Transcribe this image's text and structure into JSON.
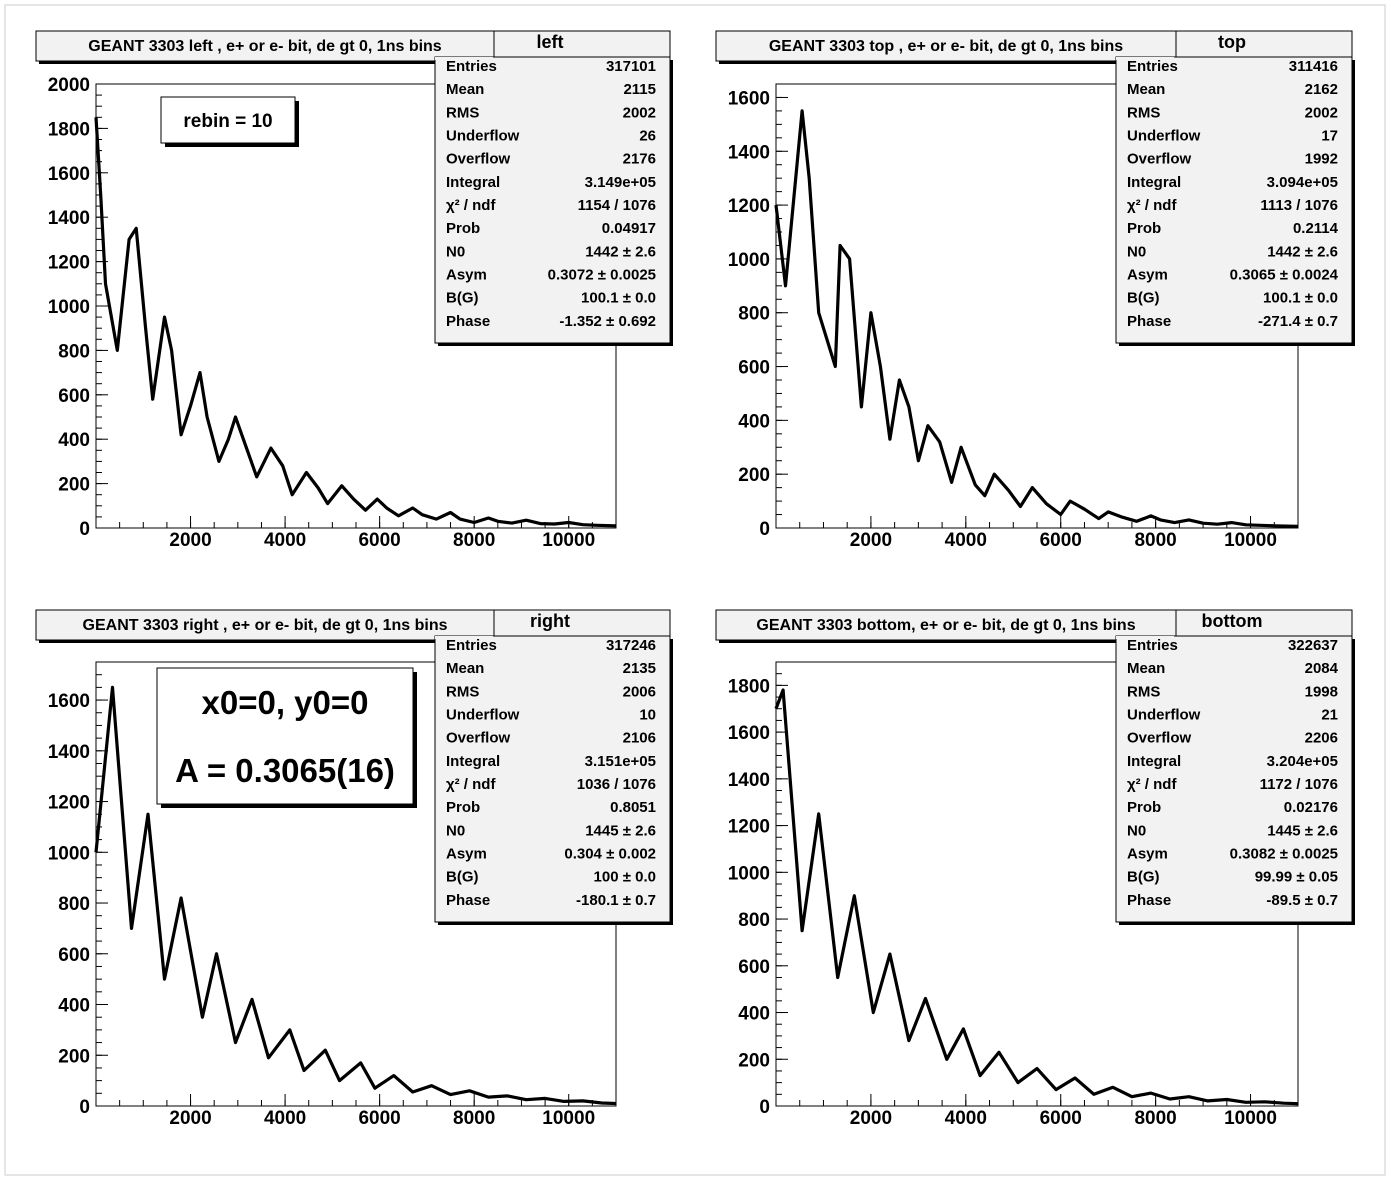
{
  "colors": {
    "line": "#000000",
    "frame": "#000000",
    "stats_bg": "#f2f2f2",
    "page_bg": "#ffffff"
  },
  "chart_data": [
    {
      "type": "line",
      "title": "GEANT 3303 left , e+ or e- bit, de gt 0, 1ns bins",
      "histogram_name": "left",
      "xlim": [
        0,
        11000
      ],
      "ylim": [
        0,
        2000
      ],
      "x_ticks": [
        2000,
        4000,
        6000,
        8000,
        10000
      ],
      "y_ticks": [
        0,
        200,
        400,
        600,
        800,
        1000,
        1200,
        1400,
        1600,
        1800,
        2000
      ],
      "grid": false,
      "note_lines": [
        "rebin = 10"
      ],
      "stats": [
        {
          "label": "Entries",
          "value": "317101"
        },
        {
          "label": "Mean",
          "value": "2115"
        },
        {
          "label": "RMS",
          "value": "2002"
        },
        {
          "label": "Underflow",
          "value": "26"
        },
        {
          "label": "Overflow",
          "value": "2176"
        },
        {
          "label": "Integral",
          "value": "3.149e+05"
        },
        {
          "label": "χ² / ndf",
          "value": "1154 / 1076"
        },
        {
          "label": "Prob",
          "value": "0.04917"
        },
        {
          "label": "N0",
          "value": "1442 ± 2.6"
        },
        {
          "label": "Asym",
          "value": "0.3072 ± 0.0025"
        },
        {
          "label": "B(G)",
          "value": "100.1 ± 0.0"
        },
        {
          "label": "Phase",
          "value": "-1.352 ± 0.692"
        }
      ],
      "x": [
        0,
        100,
        200,
        450,
        700,
        850,
        1050,
        1200,
        1450,
        1600,
        1800,
        2000,
        2200,
        2350,
        2600,
        2800,
        2950,
        3200,
        3400,
        3700,
        3950,
        4150,
        4450,
        4700,
        4900,
        5200,
        5450,
        5700,
        5950,
        6150,
        6400,
        6700,
        6900,
        7200,
        7500,
        7700,
        8000,
        8300,
        8500,
        8800,
        9100,
        9400,
        9700,
        10000,
        10300,
        10600,
        11000
      ],
      "y": [
        1850,
        1500,
        1100,
        800,
        1300,
        1350,
        900,
        580,
        950,
        800,
        420,
        550,
        700,
        500,
        300,
        400,
        500,
        350,
        230,
        360,
        280,
        150,
        250,
        180,
        110,
        190,
        130,
        80,
        130,
        90,
        55,
        90,
        60,
        40,
        70,
        40,
        25,
        45,
        30,
        22,
        35,
        20,
        18,
        25,
        15,
        12,
        10
      ]
    },
    {
      "type": "line",
      "title": "GEANT 3303 top , e+ or e- bit, de gt 0, 1ns bins",
      "histogram_name": "top",
      "xlim": [
        0,
        11000
      ],
      "ylim": [
        0,
        1650
      ],
      "x_ticks": [
        2000,
        4000,
        6000,
        8000,
        10000
      ],
      "y_ticks": [
        0,
        200,
        400,
        600,
        800,
        1000,
        1200,
        1400,
        1600
      ],
      "grid": false,
      "note_lines": [],
      "stats": [
        {
          "label": "Entries",
          "value": "311416"
        },
        {
          "label": "Mean",
          "value": "2162"
        },
        {
          "label": "RMS",
          "value": "2002"
        },
        {
          "label": "Underflow",
          "value": "17"
        },
        {
          "label": "Overflow",
          "value": "1992"
        },
        {
          "label": "Integral",
          "value": "3.094e+05"
        },
        {
          "label": "χ² / ndf",
          "value": "1113 / 1076"
        },
        {
          "label": "Prob",
          "value": "0.2114"
        },
        {
          "label": "N0",
          "value": "1442 ± 2.6"
        },
        {
          "label": "Asym",
          "value": "0.3065 ± 0.0024"
        },
        {
          "label": "B(G)",
          "value": "100.1 ± 0.0"
        },
        {
          "label": "Phase",
          "value": "-271.4 ± 0.7"
        }
      ],
      "x": [
        0,
        200,
        550,
        700,
        900,
        1250,
        1350,
        1550,
        1800,
        2000,
        2200,
        2400,
        2600,
        2800,
        3000,
        3200,
        3450,
        3700,
        3900,
        4200,
        4400,
        4600,
        4900,
        5150,
        5400,
        5700,
        6000,
        6200,
        6500,
        6800,
        7000,
        7300,
        7600,
        7900,
        8100,
        8400,
        8700,
        9000,
        9300,
        9600,
        9900,
        10200,
        10500,
        11000
      ],
      "y": [
        1200,
        900,
        1550,
        1300,
        800,
        600,
        1050,
        1000,
        450,
        800,
        600,
        330,
        550,
        450,
        250,
        380,
        320,
        170,
        300,
        160,
        120,
        200,
        140,
        80,
        150,
        90,
        50,
        100,
        70,
        35,
        60,
        40,
        25,
        45,
        30,
        20,
        30,
        18,
        14,
        20,
        12,
        10,
        8,
        6
      ]
    },
    {
      "type": "line",
      "title": "GEANT 3303 right , e+ or e- bit, de gt 0, 1ns bins",
      "histogram_name": "right",
      "xlim": [
        0,
        11000
      ],
      "ylim": [
        0,
        1750
      ],
      "x_ticks": [
        2000,
        4000,
        6000,
        8000,
        10000
      ],
      "y_ticks": [
        0,
        200,
        400,
        600,
        800,
        1000,
        1200,
        1400,
        1600
      ],
      "grid": false,
      "note_lines": [
        "x0=0, y0=0",
        "A = 0.3065(16)"
      ],
      "stats": [
        {
          "label": "Entries",
          "value": "317246"
        },
        {
          "label": "Mean",
          "value": "2135"
        },
        {
          "label": "RMS",
          "value": "2006"
        },
        {
          "label": "Underflow",
          "value": "10"
        },
        {
          "label": "Overflow",
          "value": "2106"
        },
        {
          "label": "Integral",
          "value": "3.151e+05"
        },
        {
          "label": "χ² / ndf",
          "value": "1036 / 1076"
        },
        {
          "label": "Prob",
          "value": "0.8051"
        },
        {
          "label": "N0",
          "value": "1445 ± 2.6"
        },
        {
          "label": "Asym",
          "value": "0.304 ± 0.002"
        },
        {
          "label": "B(G)",
          "value": "100 ± 0.0"
        },
        {
          "label": "Phase",
          "value": "-180.1 ± 0.7"
        }
      ],
      "x": [
        0,
        350,
        750,
        1100,
        1450,
        1800,
        2250,
        2550,
        2950,
        3300,
        3650,
        4100,
        4400,
        4850,
        5150,
        5600,
        5900,
        6300,
        6700,
        7100,
        7500,
        7900,
        8300,
        8700,
        9100,
        9500,
        9900,
        10300,
        10700,
        11000
      ],
      "y": [
        1000,
        1650,
        700,
        1150,
        500,
        820,
        350,
        600,
        250,
        420,
        190,
        300,
        140,
        220,
        100,
        170,
        70,
        120,
        55,
        80,
        45,
        60,
        35,
        40,
        25,
        30,
        18,
        20,
        12,
        10
      ]
    },
    {
      "type": "line",
      "title": "GEANT 3303 bottom, e+ or e- bit, de gt 0, 1ns bins",
      "histogram_name": "bottom",
      "xlim": [
        0,
        11000
      ],
      "ylim": [
        0,
        1900
      ],
      "x_ticks": [
        2000,
        4000,
        6000,
        8000,
        10000
      ],
      "y_ticks": [
        0,
        200,
        400,
        600,
        800,
        1000,
        1200,
        1400,
        1600,
        1800
      ],
      "grid": false,
      "note_lines": [],
      "stats": [
        {
          "label": "Entries",
          "value": "322637"
        },
        {
          "label": "Mean",
          "value": "2084"
        },
        {
          "label": "RMS",
          "value": "1998"
        },
        {
          "label": "Underflow",
          "value": "21"
        },
        {
          "label": "Overflow",
          "value": "2206"
        },
        {
          "label": "Integral",
          "value": "3.204e+05"
        },
        {
          "label": "χ² / ndf",
          "value": "1172 / 1076"
        },
        {
          "label": "Prob",
          "value": "0.02176"
        },
        {
          "label": "N0",
          "value": "1445 ± 2.6"
        },
        {
          "label": "Asym",
          "value": "0.3082 ± 0.0025"
        },
        {
          "label": "B(G)",
          "value": "99.99 ± 0.05"
        },
        {
          "label": "Phase",
          "value": "-89.5 ± 0.7"
        }
      ],
      "x": [
        0,
        150,
        550,
        900,
        1300,
        1650,
        2050,
        2400,
        2800,
        3150,
        3600,
        3950,
        4300,
        4700,
        5100,
        5500,
        5900,
        6300,
        6700,
        7100,
        7500,
        7900,
        8300,
        8700,
        9100,
        9500,
        9900,
        10300,
        10700,
        11000
      ],
      "y": [
        1700,
        1780,
        750,
        1250,
        550,
        900,
        400,
        650,
        280,
        460,
        200,
        330,
        130,
        230,
        100,
        160,
        70,
        120,
        50,
        80,
        40,
        55,
        30,
        40,
        22,
        28,
        16,
        18,
        12,
        10
      ]
    }
  ]
}
